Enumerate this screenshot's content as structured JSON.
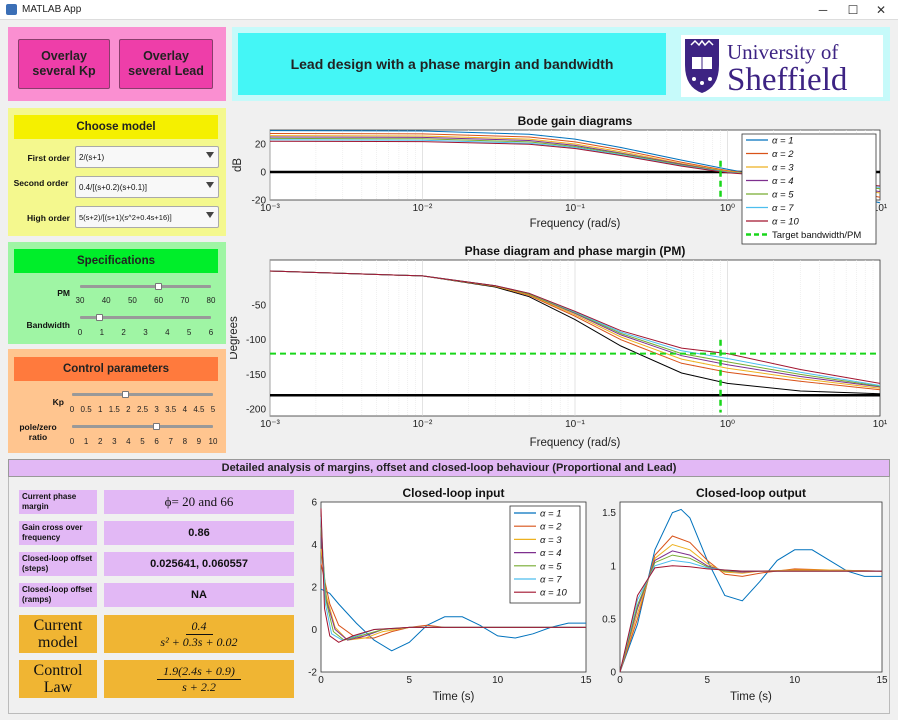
{
  "window": {
    "title": "MATLAB App",
    "minimize": "─",
    "maximize": "☐",
    "close": "✕"
  },
  "buttons": {
    "overlay_kp": "Overlay several Kp",
    "overlay_lead": "Overlay several Lead"
  },
  "banner": {
    "title": "Lead design with a phase margin and bandwidth",
    "logo_line1": "University of",
    "logo_line2": "Sheffield"
  },
  "model": {
    "header": "Choose model",
    "first_label": "First order",
    "first_value": "2/(s+1)",
    "second_label": "Second order",
    "second_value": "0.4/[(s+0.2)(s+0.1)]",
    "high_label": "High order",
    "high_value": "5(s+2)/[(s+1)(s^2+0.4s+16)]"
  },
  "specs": {
    "header": "Specifications",
    "pm_label": "PM",
    "pm_ticks": [
      "30",
      "40",
      "50",
      "60",
      "70",
      "80"
    ],
    "pm_value": 60,
    "bw_label": "Bandwidth",
    "bw_ticks": [
      "0",
      "1",
      "2",
      "3",
      "4",
      "5",
      "6"
    ],
    "bw_value": 0.9
  },
  "control": {
    "header": "Control parameters",
    "kp_label": "Kp",
    "kp_ticks": [
      "0",
      "0.5",
      "1",
      "1.5",
      "2",
      "2.5",
      "3",
      "3.5",
      "4",
      "4.5",
      "5"
    ],
    "kp_value": 1.9,
    "ratio_label": "pole/zero ratio",
    "ratio_ticks": [
      "0",
      "1",
      "2",
      "3",
      "4",
      "5",
      "6",
      "7",
      "8",
      "9",
      "10"
    ],
    "ratio_value": 6
  },
  "analysis": {
    "header": "Detailed analysis of margins, offset  and closed-loop behaviour (Proportional and Lead)",
    "pm_label": "Current phase margin",
    "pm_value": "ϕ= 20 and 66",
    "gc_label": "Gain cross over frequency",
    "gc_value": "0.86",
    "off_steps_label": "Closed-loop offset (steps)",
    "off_steps_value": "0.025641,   0.060557",
    "off_ramps_label": "Closed-loop offset (ramps)",
    "off_ramps_value": "NA",
    "model_label": "Current model",
    "model_num": "0.4",
    "model_den": "s² + 0.3s + 0.02",
    "law_label": "Control Law",
    "law_num": "1.9(2.4s + 0.9)",
    "law_den": "s + 2.2"
  },
  "colors": {
    "pink": "#fa8fd1",
    "cyan": "#44f6f6",
    "yellow": "#f5f000",
    "green": "#00ee2a",
    "orange": "#ff7a3d",
    "purple": "#e2b8f5",
    "gold": "#f0b533"
  },
  "series_colors": [
    "#0072bd",
    "#d95319",
    "#edb120",
    "#7e2f8e",
    "#77ac30",
    "#4dbeee",
    "#a2142f"
  ],
  "chart_data": [
    {
      "type": "line",
      "title": "Bode gain diagrams",
      "xlabel": "Frequency (rad/s)",
      "ylabel": "dB",
      "xscale": "log",
      "xlim": [
        0.001,
        10
      ],
      "ylim": [
        -20,
        30
      ],
      "yticks": [
        "20",
        "0",
        "-20"
      ],
      "xticks": [
        "10⁻³",
        "10⁻²",
        "10⁻¹",
        "10⁰",
        "10¹"
      ],
      "legend": [
        "α = 1",
        "α = 2",
        "α = 3",
        "α = 4",
        "α = 5",
        "α = 7",
        "α = 10",
        "Target bandwidth/PM"
      ],
      "legend_position": "right",
      "target_bandwidth": 0.9,
      "series": [
        {
          "name": "α = 1",
          "x": [
            0.001,
            0.01,
            0.05,
            0.1,
            0.2,
            0.5,
            1,
            2,
            5,
            10
          ],
          "y": [
            29.6,
            29.3,
            27,
            23.5,
            17.5,
            8.5,
            2,
            -4,
            -15,
            -22
          ]
        },
        {
          "name": "α = 2",
          "x": [
            0.001,
            0.01,
            0.05,
            0.1,
            0.2,
            0.5,
            1,
            2,
            5,
            10
          ],
          "y": [
            27.5,
            27.2,
            25,
            21.5,
            15.8,
            7,
            1,
            -3,
            -12,
            -18
          ]
        },
        {
          "name": "α = 3",
          "x": [
            0.001,
            0.01,
            0.05,
            0.1,
            0.2,
            0.5,
            1,
            2,
            5,
            10
          ],
          "y": [
            26,
            25.7,
            23.5,
            20,
            14.5,
            6,
            0.5,
            -3,
            -10,
            -15
          ]
        },
        {
          "name": "α = 4",
          "x": [
            0.001,
            0.01,
            0.05,
            0.1,
            0.2,
            0.5,
            1,
            2,
            5,
            10
          ],
          "y": [
            25,
            24.7,
            22.5,
            19,
            13.5,
            5.5,
            0,
            -3,
            -9,
            -14
          ]
        },
        {
          "name": "α = 5",
          "x": [
            0.001,
            0.01,
            0.05,
            0.1,
            0.2,
            0.5,
            1,
            2,
            5,
            10
          ],
          "y": [
            24,
            23.7,
            21.5,
            18.2,
            13,
            5,
            0,
            -3,
            -8,
            -12
          ]
        },
        {
          "name": "α = 7",
          "x": [
            0.001,
            0.01,
            0.05,
            0.1,
            0.2,
            0.5,
            1,
            2,
            5,
            10
          ],
          "y": [
            23,
            22.7,
            20.6,
            17.5,
            12.3,
            4.6,
            -0.2,
            -3,
            -7.5,
            -11
          ]
        },
        {
          "name": "α = 10",
          "x": [
            0.001,
            0.01,
            0.05,
            0.1,
            0.2,
            0.5,
            1,
            2,
            5,
            10
          ],
          "y": [
            22,
            21.7,
            19.8,
            16.8,
            11.8,
            4.2,
            -0.5,
            -3,
            -7,
            -10
          ]
        }
      ]
    },
    {
      "type": "line",
      "title": "Phase diagram and phase margin (PM)",
      "xlabel": "Frequency (rad/s)",
      "ylabel": "Degrees",
      "xscale": "log",
      "xlim": [
        0.001,
        10
      ],
      "ylim": [
        -210,
        15
      ],
      "yticks": [
        "-50",
        "-100",
        "-150",
        "-200"
      ],
      "xticks": [
        "10⁻³",
        "10⁻²",
        "10⁻¹",
        "10⁰",
        "10¹"
      ],
      "target_pm_line": -120,
      "target_bandwidth": 0.9,
      "series": [
        {
          "name": "uncompensated",
          "x": [
            0.001,
            0.01,
            0.03,
            0.05,
            0.1,
            0.2,
            0.5,
            1,
            3,
            10
          ],
          "y": [
            -0.8,
            -8,
            -24,
            -38,
            -71,
            -109,
            -148,
            -163,
            -174,
            -178
          ]
        },
        {
          "name": "α = 2",
          "x": [
            0.001,
            0.01,
            0.03,
            0.05,
            0.1,
            0.2,
            0.5,
            1,
            3,
            10
          ],
          "y": [
            -0.8,
            -8,
            -23,
            -36,
            -66,
            -100,
            -134,
            -147,
            -160,
            -172
          ]
        },
        {
          "name": "α = 3",
          "x": [
            0.001,
            0.01,
            0.03,
            0.05,
            0.1,
            0.2,
            0.5,
            1,
            3,
            10
          ],
          "y": [
            -0.8,
            -8,
            -23,
            -35,
            -64,
            -96,
            -128,
            -141,
            -156,
            -170
          ]
        },
        {
          "name": "α = 4",
          "x": [
            0.001,
            0.01,
            0.03,
            0.05,
            0.1,
            0.2,
            0.5,
            1,
            3,
            10
          ],
          "y": [
            -0.8,
            -8,
            -22,
            -34,
            -62,
            -93,
            -123,
            -136,
            -153,
            -168
          ]
        },
        {
          "name": "α = 5",
          "x": [
            0.001,
            0.01,
            0.03,
            0.05,
            0.1,
            0.2,
            0.5,
            1,
            3,
            10
          ],
          "y": [
            -0.8,
            -8,
            -22,
            -34,
            -61,
            -91,
            -120,
            -132,
            -150,
            -167
          ]
        },
        {
          "name": "α = 7",
          "x": [
            0.001,
            0.01,
            0.03,
            0.05,
            0.1,
            0.2,
            0.5,
            1,
            3,
            10
          ],
          "y": [
            -0.8,
            -8,
            -22,
            -33,
            -60,
            -89,
            -116,
            -127,
            -147,
            -166
          ]
        },
        {
          "name": "α = 10",
          "x": [
            0.001,
            0.01,
            0.03,
            0.05,
            0.1,
            0.2,
            0.5,
            1,
            3,
            10
          ],
          "y": [
            -0.8,
            -8,
            -22,
            -33,
            -59,
            -87,
            -112,
            -120,
            -143,
            -163
          ]
        }
      ]
    },
    {
      "type": "line",
      "title": "Closed-loop input",
      "xlabel": "Time (s)",
      "ylabel": "",
      "xlim": [
        0,
        15
      ],
      "ylim": [
        -2,
        6
      ],
      "xticks": [
        "0",
        "5",
        "10",
        "15"
      ],
      "yticks": [
        "6",
        "4",
        "2",
        "0",
        "-2"
      ],
      "legend": [
        "α = 1",
        "α = 2",
        "α = 3",
        "α = 4",
        "α = 5",
        "α = 7",
        "α = 10"
      ],
      "legend_position": "top-right",
      "series": [
        {
          "name": "α = 1",
          "x": [
            0,
            0.5,
            1,
            2,
            3,
            4,
            5,
            6,
            7,
            8,
            9,
            10,
            11,
            12,
            13,
            14,
            15
          ],
          "y": [
            1.9,
            1.7,
            1.2,
            0.3,
            -0.5,
            -1.0,
            -0.6,
            0.2,
            0.6,
            0.6,
            0.2,
            -0.3,
            -0.4,
            -0.2,
            0.1,
            0.3,
            0.3
          ]
        },
        {
          "name": "α = 2",
          "x": [
            0,
            0.5,
            1,
            2,
            3,
            4,
            5,
            6,
            7,
            8,
            10,
            12,
            15
          ],
          "y": [
            3.1,
            1.2,
            0.2,
            -0.4,
            -0.4,
            -0.1,
            0.1,
            0.2,
            0.1,
            0.1,
            0.1,
            0.1,
            0.1
          ]
        },
        {
          "name": "α = 3",
          "x": [
            0,
            0.3,
            0.8,
            1.5,
            2.5,
            3.5,
            5,
            7,
            10,
            15
          ],
          "y": [
            3.8,
            1.6,
            0.1,
            -0.5,
            -0.4,
            -0.1,
            0.1,
            0.1,
            0.1,
            0.1
          ]
        },
        {
          "name": "α = 4",
          "x": [
            0,
            0.3,
            0.8,
            1.5,
            2.5,
            3.5,
            5,
            7,
            10,
            15
          ],
          "y": [
            4.4,
            1.4,
            0.0,
            -0.5,
            -0.3,
            0.0,
            0.1,
            0.1,
            0.1,
            0.1
          ]
        },
        {
          "name": "α = 5",
          "x": [
            0,
            0.3,
            0.7,
            1.3,
            2.2,
            3.5,
            5,
            7,
            10,
            15
          ],
          "y": [
            4.8,
            1.3,
            -0.1,
            -0.5,
            -0.3,
            0.0,
            0.1,
            0.1,
            0.1,
            0.1
          ]
        },
        {
          "name": "α = 7",
          "x": [
            0,
            0.25,
            0.6,
            1.2,
            2,
            3,
            5,
            7,
            10,
            15
          ],
          "y": [
            5.3,
            1.2,
            -0.2,
            -0.5,
            -0.3,
            0.0,
            0.1,
            0.1,
            0.1,
            0.1
          ]
        },
        {
          "name": "α = 10",
          "x": [
            0,
            0.2,
            0.5,
            1.0,
            1.8,
            3,
            5,
            7,
            10,
            15
          ],
          "y": [
            5.7,
            1.0,
            -0.3,
            -0.6,
            -0.3,
            0.0,
            0.1,
            0.1,
            0.1,
            0.1
          ]
        }
      ]
    },
    {
      "type": "line",
      "title": "Closed-loop output",
      "xlabel": "Time (s)",
      "ylabel": "",
      "xlim": [
        0,
        15
      ],
      "ylim": [
        0,
        1.6
      ],
      "xticks": [
        "0",
        "5",
        "10",
        "15"
      ],
      "yticks": [
        "1.5",
        "1",
        "0.5",
        "0"
      ],
      "series": [
        {
          "name": "α = 1",
          "x": [
            0,
            1,
            2,
            3,
            3.5,
            4,
            5,
            6,
            7,
            8,
            9,
            10,
            11,
            12,
            13,
            14,
            15
          ],
          "y": [
            0,
            0.45,
            1.15,
            1.5,
            1.53,
            1.45,
            1.05,
            0.72,
            0.67,
            0.85,
            1.05,
            1.15,
            1.15,
            1.05,
            0.95,
            0.9,
            0.9
          ]
        },
        {
          "name": "α = 2",
          "x": [
            0,
            1,
            2,
            3,
            4,
            5,
            6,
            7,
            8,
            10,
            12,
            15
          ],
          "y": [
            0,
            0.5,
            1.1,
            1.28,
            1.22,
            1.05,
            0.92,
            0.9,
            0.93,
            0.97,
            0.96,
            0.95
          ]
        },
        {
          "name": "α = 3",
          "x": [
            0,
            1,
            2,
            3,
            4,
            5,
            6,
            7,
            8,
            10,
            12,
            15
          ],
          "y": [
            0,
            0.55,
            1.07,
            1.2,
            1.15,
            1.02,
            0.94,
            0.93,
            0.95,
            0.96,
            0.96,
            0.95
          ]
        },
        {
          "name": "α = 4",
          "x": [
            0,
            1,
            2,
            3,
            4,
            5,
            6,
            7,
            8,
            10,
            12,
            15
          ],
          "y": [
            0,
            0.6,
            1.05,
            1.14,
            1.1,
            1.0,
            0.95,
            0.94,
            0.95,
            0.95,
            0.95,
            0.95
          ]
        },
        {
          "name": "α = 5",
          "x": [
            0,
            1,
            2,
            3,
            4,
            5,
            6,
            7,
            8,
            10,
            12,
            15
          ],
          "y": [
            0,
            0.63,
            1.03,
            1.1,
            1.07,
            0.99,
            0.95,
            0.95,
            0.95,
            0.95,
            0.95,
            0.95
          ]
        },
        {
          "name": "α = 7",
          "x": [
            0,
            1,
            2,
            3,
            4,
            5,
            6,
            7,
            8,
            10,
            12,
            15
          ],
          "y": [
            0,
            0.68,
            1.0,
            1.05,
            1.03,
            0.98,
            0.96,
            0.95,
            0.95,
            0.95,
            0.95,
            0.95
          ]
        },
        {
          "name": "α = 10",
          "x": [
            0,
            1,
            2,
            3,
            4,
            5,
            6,
            7,
            8,
            10,
            12,
            15
          ],
          "y": [
            0,
            0.72,
            0.98,
            1.0,
            0.99,
            0.97,
            0.96,
            0.95,
            0.95,
            0.95,
            0.95,
            0.95
          ]
        }
      ]
    }
  ]
}
